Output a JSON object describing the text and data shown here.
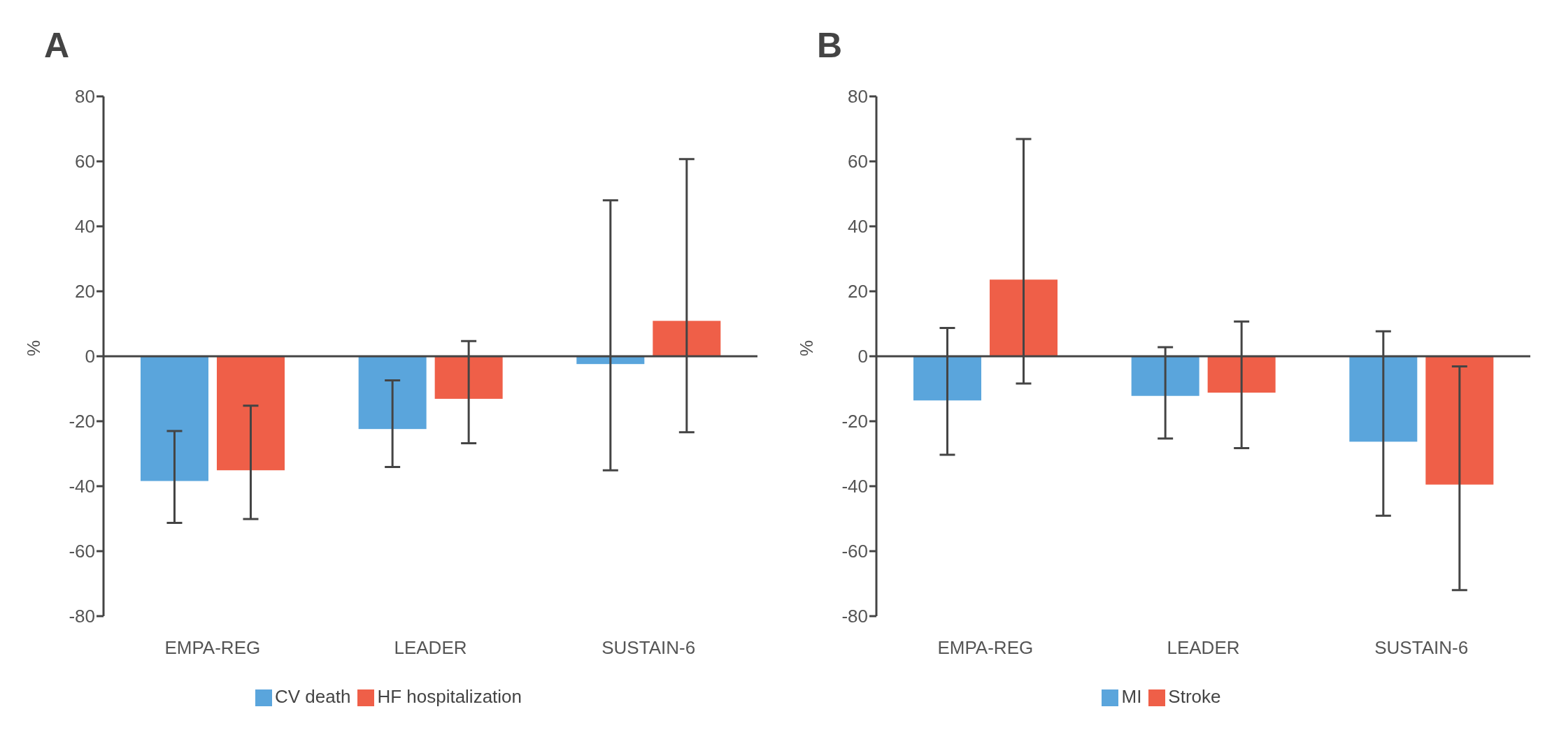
{
  "chart_data": [
    {
      "type": "bar",
      "title": "A",
      "ylabel": "%",
      "categories": [
        "EMPA-REG",
        "LEADER",
        "SUSTAIN-6"
      ],
      "ylim": [
        -80,
        80
      ],
      "yticks": [
        -80,
        -60,
        -40,
        -20,
        0,
        20,
        40,
        60,
        80
      ],
      "legend": "bottom",
      "series": [
        {
          "name": "CV death",
          "color": "#5aa5dc",
          "values": [
            -38.4,
            -22.4,
            -2.4
          ],
          "errors": [
            [
              -51.3,
              -23
            ],
            [
              -34.1,
              -7.4
            ],
            [
              -35.1,
              48
            ]
          ]
        },
        {
          "name": "HF hospitalization",
          "color": "#ef5f48",
          "values": [
            -35.1,
            -13.1,
            10.9
          ],
          "errors": [
            [
              -50.1,
              -15.2
            ],
            [
              -26.8,
              4.7
            ],
            [
              -23.4,
              60.7
            ]
          ]
        }
      ]
    },
    {
      "type": "bar",
      "title": "B",
      "ylabel": "%",
      "categories": [
        "EMPA-REG",
        "LEADER",
        "SUSTAIN-6"
      ],
      "ylim": [
        -80,
        80
      ],
      "yticks": [
        -80,
        -60,
        -40,
        -20,
        0,
        20,
        40,
        60,
        80
      ],
      "legend": "bottom",
      "series": [
        {
          "name": "MI",
          "color": "#5aa5dc",
          "values": [
            -13.6,
            -12.2,
            -26.3
          ],
          "errors": [
            [
              -30.3,
              8.7
            ],
            [
              -25.3,
              2.8
            ],
            [
              -49.1,
              7.7
            ]
          ]
        },
        {
          "name": "Stroke",
          "color": "#ef5f48",
          "values": [
            23.6,
            -11.2,
            -39.5
          ],
          "errors": [
            [
              -8.4,
              66.9
            ],
            [
              -28.3,
              10.7
            ],
            [
              -72,
              -3.1
            ]
          ]
        }
      ]
    }
  ]
}
